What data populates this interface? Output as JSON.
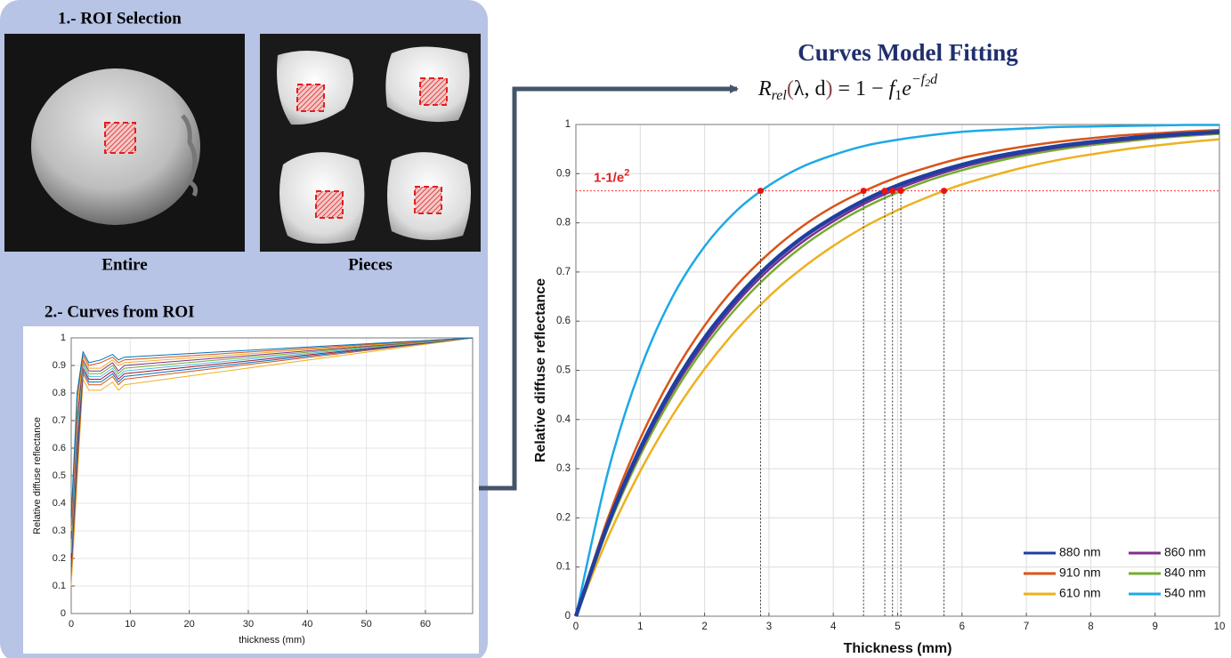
{
  "panel": {
    "step1": "1.- ROI Selection",
    "captions": [
      "Entire",
      "Pieces"
    ],
    "step2": "2.- Curves from ROI"
  },
  "chart_data": [
    {
      "type": "line",
      "xlabel": "thickness (mm)",
      "ylabel": "Relative diffuse reflectance",
      "x": [
        0,
        1,
        2,
        3,
        5,
        7,
        8,
        9,
        68
      ],
      "xlim": [
        0,
        68
      ],
      "xticks": [
        0,
        10,
        20,
        30,
        40,
        50,
        60
      ],
      "ylim": [
        0,
        1
      ],
      "yticks": [
        0,
        0.1,
        0.2,
        0.3,
        0.4,
        0.5,
        0.6,
        0.7,
        0.8,
        0.9,
        1
      ],
      "grid": true,
      "series": [
        {
          "color": "#0072bd",
          "values": [
            0.35,
            0.8,
            0.95,
            0.91,
            0.92,
            0.94,
            0.92,
            0.93,
            1
          ]
        },
        {
          "color": "#d95319",
          "values": [
            0.32,
            0.78,
            0.94,
            0.9,
            0.91,
            0.93,
            0.91,
            0.92,
            1
          ]
        },
        {
          "color": "#edb120",
          "values": [
            0.3,
            0.74,
            0.93,
            0.89,
            0.89,
            0.92,
            0.9,
            0.91,
            1
          ]
        },
        {
          "color": "#7e2f8e",
          "values": [
            0.27,
            0.7,
            0.92,
            0.88,
            0.88,
            0.91,
            0.88,
            0.9,
            1
          ]
        },
        {
          "color": "#77ac30",
          "values": [
            0.25,
            0.68,
            0.91,
            0.87,
            0.87,
            0.9,
            0.87,
            0.89,
            1
          ]
        },
        {
          "color": "#4dbeee",
          "values": [
            0.22,
            0.64,
            0.9,
            0.86,
            0.86,
            0.89,
            0.86,
            0.88,
            1
          ]
        },
        {
          "color": "#a2142f",
          "values": [
            0.2,
            0.6,
            0.89,
            0.85,
            0.85,
            0.88,
            0.85,
            0.87,
            1
          ]
        },
        {
          "color": "#0072bd",
          "values": [
            0.17,
            0.56,
            0.88,
            0.84,
            0.84,
            0.87,
            0.84,
            0.86,
            1
          ]
        },
        {
          "color": "#d95319",
          "values": [
            0.14,
            0.52,
            0.87,
            0.83,
            0.83,
            0.86,
            0.83,
            0.85,
            1
          ]
        },
        {
          "color": "#edb120",
          "values": [
            0.1,
            0.48,
            0.85,
            0.81,
            0.81,
            0.84,
            0.81,
            0.83,
            1
          ]
        }
      ]
    },
    {
      "type": "line",
      "title": "Curves Model Fitting",
      "formula": [
        "R",
        "rel",
        "(",
        "λ, d",
        ")",
        " = 1 − ",
        "f",
        "1",
        "e",
        "−f",
        "2",
        "d"
      ],
      "xlabel": "Thickness (mm)",
      "ylabel": "Relative diffuse reflectance",
      "x": [
        0,
        0.5,
        1,
        1.5,
        2,
        2.5,
        3,
        3.5,
        4,
        4.5,
        5,
        5.5,
        6,
        6.5,
        7,
        7.5,
        8,
        8.5,
        9,
        9.5,
        10
      ],
      "xlim": [
        0,
        10
      ],
      "xticks": [
        0,
        1,
        2,
        3,
        4,
        5,
        6,
        7,
        8,
        9,
        10
      ],
      "ylim": [
        0,
        1
      ],
      "yticks": [
        0,
        0.1,
        0.2,
        0.3,
        0.4,
        0.5,
        0.6,
        0.7,
        0.8,
        0.9,
        1
      ],
      "grid": true,
      "legend": "lower right",
      "threshold": {
        "label": [
          "1-1/e",
          "2"
        ],
        "value": 0.865,
        "x": [
          2.87,
          4.47,
          4.8,
          4.92,
          5.05,
          5.72
        ]
      },
      "series": [
        {
          "name": "880 nm",
          "color": "#1f3fa0",
          "values": [
            0,
            0.188,
            0.341,
            0.465,
            0.566,
            0.647,
            0.714,
            0.768,
            0.811,
            0.847,
            0.876,
            0.899,
            0.918,
            0.934,
            0.946,
            0.956,
            0.964,
            0.971,
            0.977,
            0.981,
            0.985
          ]
        },
        {
          "name": "860 nm",
          "color": "#7e2f8e",
          "values": [
            0,
            0.184,
            0.334,
            0.457,
            0.556,
            0.638,
            0.705,
            0.759,
            0.803,
            0.84,
            0.869,
            0.893,
            0.913,
            0.929,
            0.942,
            0.953,
            0.961,
            0.968,
            0.974,
            0.979,
            0.983
          ]
        },
        {
          "name": "910 nm",
          "color": "#d95319",
          "values": [
            0,
            0.2,
            0.361,
            0.489,
            0.591,
            0.673,
            0.738,
            0.791,
            0.833,
            0.866,
            0.893,
            0.914,
            0.932,
            0.945,
            0.956,
            0.965,
            0.972,
            0.978,
            0.982,
            0.986,
            0.989
          ]
        },
        {
          "name": "840 nm",
          "color": "#77ac30",
          "values": [
            0,
            0.18,
            0.327,
            0.448,
            0.547,
            0.628,
            0.695,
            0.75,
            0.795,
            0.832,
            0.862,
            0.887,
            0.907,
            0.924,
            0.938,
            0.949,
            0.958,
            0.965,
            0.972,
            0.977,
            0.981
          ]
        },
        {
          "name": "610 nm",
          "color": "#edb120",
          "values": [
            0,
            0.161,
            0.295,
            0.408,
            0.503,
            0.583,
            0.65,
            0.706,
            0.753,
            0.793,
            0.826,
            0.854,
            0.878,
            0.897,
            0.914,
            0.928,
            0.939,
            0.949,
            0.957,
            0.964,
            0.97
          ]
        },
        {
          "name": "540 nm",
          "color": "#1ca9e6",
          "values": [
            0,
            0.294,
            0.502,
            0.649,
            0.752,
            0.825,
            0.876,
            0.913,
            0.938,
            0.957,
            0.969,
            0.978,
            0.985,
            0.989,
            0.992,
            0.995,
            0.996,
            0.997,
            0.998,
            0.999,
            0.999
          ]
        }
      ]
    }
  ]
}
